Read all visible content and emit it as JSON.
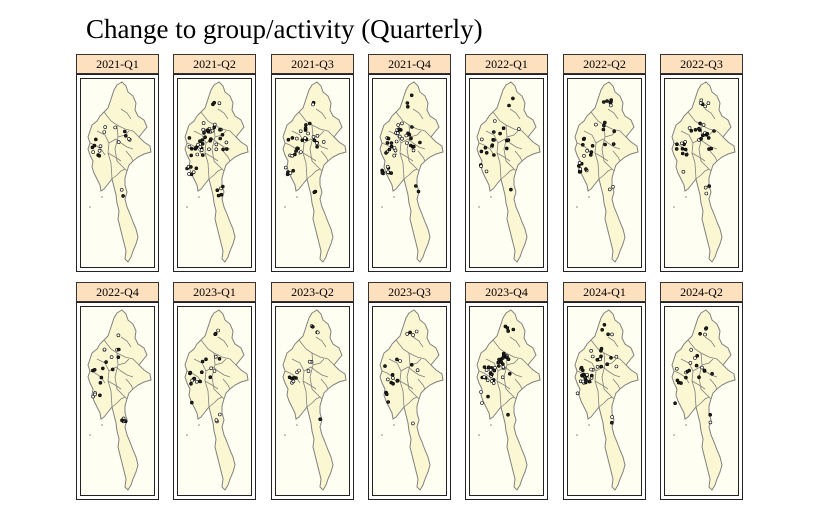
{
  "title": "Change to group/activity (Quarterly)",
  "colors": {
    "facet_strip": "#fde0be",
    "land": "#fbf7d2",
    "boundary": "#808080",
    "background": "#fffef2",
    "point_stroke": "#000000",
    "point_fill": "#ffffff"
  },
  "panels": [
    {
      "label": "2021-Q1",
      "density": 0.25
    },
    {
      "label": "2021-Q2",
      "density": 1.0
    },
    {
      "label": "2021-Q3",
      "density": 0.6
    },
    {
      "label": "2021-Q4",
      "density": 0.85
    },
    {
      "label": "2022-Q1",
      "density": 0.35
    },
    {
      "label": "2022-Q2",
      "density": 0.55
    },
    {
      "label": "2022-Q3",
      "density": 0.6
    },
    {
      "label": "2022-Q4",
      "density": 0.35
    },
    {
      "label": "2023-Q1",
      "density": 0.35
    },
    {
      "label": "2023-Q2",
      "density": 0.2
    },
    {
      "label": "2023-Q3",
      "density": 0.3
    },
    {
      "label": "2023-Q4",
      "density": 0.75
    },
    {
      "label": "2024-Q1",
      "density": 0.7
    },
    {
      "label": "2024-Q2",
      "density": 0.4
    }
  ]
}
